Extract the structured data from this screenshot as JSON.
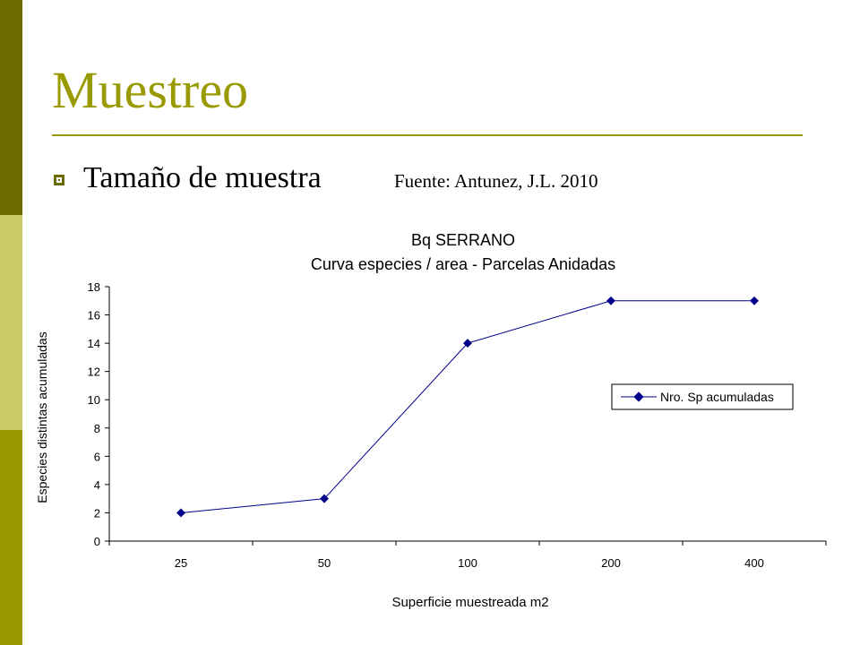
{
  "slide": {
    "title": "Muestreo",
    "bullet_text": "Tamaño de muestra",
    "source_text": "Fuente: Antunez, J.L. 2010"
  },
  "colors": {
    "sidebar_dark": "#6b6b00",
    "sidebar_light": "#cccc66",
    "sidebar_mid": "#999900",
    "title": "#999900",
    "series_line": "#00008b"
  },
  "chart_data": {
    "type": "line",
    "title": "Bq SERRANO",
    "subtitle": "Curva especies / area - Parcelas Anidadas",
    "xlabel": "Superficie muestreada m2",
    "ylabel": "Especies distintas acumuladas",
    "categories": [
      "25",
      "50",
      "100",
      "200",
      "400"
    ],
    "series": [
      {
        "name": "Nro. Sp acumuladas",
        "values": [
          2,
          3,
          14,
          17,
          17
        ]
      }
    ],
    "ylim": [
      0,
      18
    ],
    "yticks": [
      0,
      2,
      4,
      6,
      8,
      10,
      12,
      14,
      16,
      18
    ],
    "grid": false,
    "legend": "right"
  }
}
